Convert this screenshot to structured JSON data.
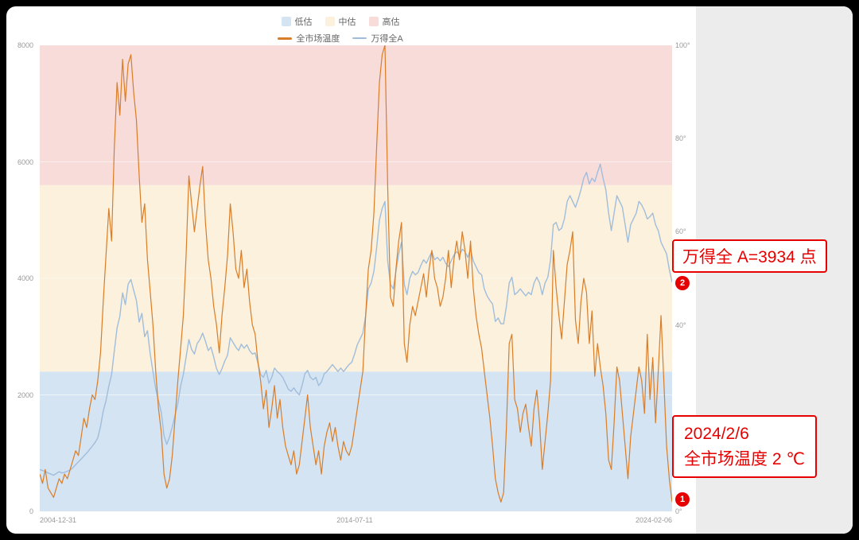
{
  "colors": {
    "annotation_red": "#e60000",
    "panel_gray": "#ececec",
    "axis_text": "#999999"
  },
  "annotations": {
    "index_note": {
      "text": "万得全 A=3934 点",
      "badge": "2"
    },
    "temp_note": {
      "line1": "2024/2/6",
      "line2": "全市场温度 2 ℃",
      "badge": "1"
    }
  },
  "chart_data": {
    "type": "line",
    "x_range": [
      "2004-12-31",
      "2024-02-06"
    ],
    "x_step": "monthly",
    "left_axis": {
      "max": 8000,
      "ticks": [
        "0",
        "2000",
        "4000",
        "6000",
        "8000"
      ]
    },
    "right_axis": {
      "max": 100,
      "ticks": [
        "0°",
        "20°",
        "40°",
        "60°",
        "80°",
        "100°"
      ]
    },
    "x_axis": {
      "ticks": [
        {
          "label": "2004-12-31",
          "f": 0
        },
        {
          "label": "2014-07-11",
          "f": 0.498
        },
        {
          "label": "2024-02-06",
          "f": 1
        }
      ]
    },
    "bands": [
      {
        "label": "低估",
        "from": 0,
        "to": 30,
        "color": "#d4e4f2"
      },
      {
        "label": "中估",
        "from": 30,
        "to": 70,
        "color": "#fbf1dd"
      },
      {
        "label": "高估",
        "from": 70,
        "to": 100,
        "color": "#f8dcd9"
      }
    ],
    "series": [
      {
        "key": "temperature",
        "name": "全市场温度",
        "axis": "right",
        "color": "#d97d28",
        "width": 1.2,
        "values": [
          8,
          6,
          9,
          5,
          4,
          3,
          5,
          7,
          6,
          8,
          7,
          9,
          11,
          13,
          12,
          16,
          20,
          18,
          22,
          25,
          24,
          28,
          34,
          45,
          55,
          65,
          58,
          78,
          92,
          85,
          97,
          88,
          96,
          98,
          90,
          84,
          72,
          62,
          66,
          54,
          47,
          40,
          30,
          22,
          17,
          8,
          5,
          7,
          12,
          20,
          28,
          35,
          42,
          55,
          72,
          66,
          60,
          65,
          70,
          74,
          62,
          54,
          50,
          44,
          40,
          34,
          42,
          48,
          55,
          66,
          60,
          52,
          50,
          56,
          48,
          52,
          45,
          40,
          38,
          32,
          28,
          22,
          26,
          18,
          22,
          27,
          20,
          24,
          18,
          14,
          12,
          10,
          13,
          8,
          10,
          15,
          20,
          25,
          18,
          14,
          10,
          13,
          8,
          14,
          17,
          19,
          15,
          18,
          14,
          11,
          15,
          13,
          12,
          14,
          18,
          22,
          26,
          30,
          42,
          52,
          56,
          64,
          78,
          92,
          98,
          100,
          70,
          46,
          44,
          52,
          58,
          62,
          36,
          32,
          40,
          44,
          42,
          45,
          48,
          51,
          46,
          52,
          56,
          50,
          48,
          44,
          46,
          50,
          56,
          48,
          54,
          58,
          54,
          60,
          56,
          50,
          58,
          48,
          42,
          38,
          35,
          30,
          25,
          20,
          14,
          7,
          4,
          2,
          4,
          18,
          36,
          38,
          24,
          22,
          17,
          21,
          23,
          18,
          14,
          22,
          26,
          19,
          9,
          15,
          21,
          28,
          56,
          48,
          42,
          37,
          45,
          53,
          56,
          60,
          41,
          36,
          45,
          50,
          47,
          36,
          43,
          29,
          36,
          31,
          27,
          21,
          11,
          9,
          19,
          31,
          28,
          21,
          14,
          7,
          16,
          21,
          26,
          31,
          28,
          21,
          38,
          24,
          33,
          19,
          30,
          42,
          28,
          14,
          7,
          2
        ]
      },
      {
        "key": "index",
        "name": "万得全A",
        "axis": "left",
        "color": "#a0bddc",
        "width": 1.4,
        "values": [
          720,
          700,
          690,
          660,
          640,
          620,
          650,
          680,
          660,
          670,
          690,
          710,
          750,
          800,
          850,
          900,
          950,
          1000,
          1060,
          1120,
          1180,
          1260,
          1460,
          1720,
          1900,
          2150,
          2350,
          2750,
          3150,
          3350,
          3750,
          3550,
          3900,
          3980,
          3800,
          3620,
          3250,
          3400,
          3000,
          3100,
          2700,
          2400,
          2100,
          1900,
          1700,
          1300,
          1150,
          1280,
          1450,
          1650,
          1850,
          2150,
          2350,
          2650,
          2950,
          2780,
          2700,
          2880,
          2950,
          3060,
          2920,
          2760,
          2820,
          2650,
          2450,
          2350,
          2450,
          2580,
          2680,
          2980,
          2900,
          2820,
          2760,
          2870,
          2800,
          2860,
          2760,
          2700,
          2720,
          2550,
          2350,
          2300,
          2420,
          2200,
          2300,
          2460,
          2400,
          2360,
          2300,
          2200,
          2100,
          2060,
          2120,
          2050,
          2000,
          2160,
          2360,
          2420,
          2300,
          2260,
          2300,
          2160,
          2220,
          2360,
          2400,
          2460,
          2520,
          2460,
          2400,
          2460,
          2400,
          2460,
          2520,
          2560,
          2700,
          2860,
          2960,
          3060,
          3360,
          3820,
          3920,
          4120,
          4520,
          5000,
          5200,
          5320,
          4300,
          3900,
          3820,
          4120,
          4420,
          4620,
          3900,
          3720,
          4000,
          4120,
          4060,
          4100,
          4220,
          4320,
          4260,
          4360,
          4460,
          4320,
          4360,
          4300,
          4360,
          4260,
          4200,
          4300,
          4400,
          4460,
          4400,
          4500,
          4460,
          4360,
          4500,
          4300,
          4200,
          4100,
          4060,
          3820,
          3700,
          3620,
          3560,
          3260,
          3320,
          3220,
          3220,
          3520,
          3920,
          4020,
          3720,
          3760,
          3820,
          3760,
          3700,
          3760,
          3720,
          3920,
          4020,
          3920,
          3720,
          3920,
          4020,
          4320,
          4920,
          4960,
          4820,
          4860,
          5020,
          5320,
          5420,
          5320,
          5220,
          5360,
          5520,
          5720,
          5820,
          5620,
          5720,
          5660,
          5820,
          5960,
          5720,
          5520,
          5120,
          4820,
          5120,
          5420,
          5320,
          5220,
          4920,
          4620,
          4920,
          5020,
          5120,
          5320,
          5260,
          5160,
          5020,
          5060,
          5120,
          4920,
          4820,
          4620,
          4520,
          4420,
          4150,
          3934
        ]
      }
    ]
  }
}
